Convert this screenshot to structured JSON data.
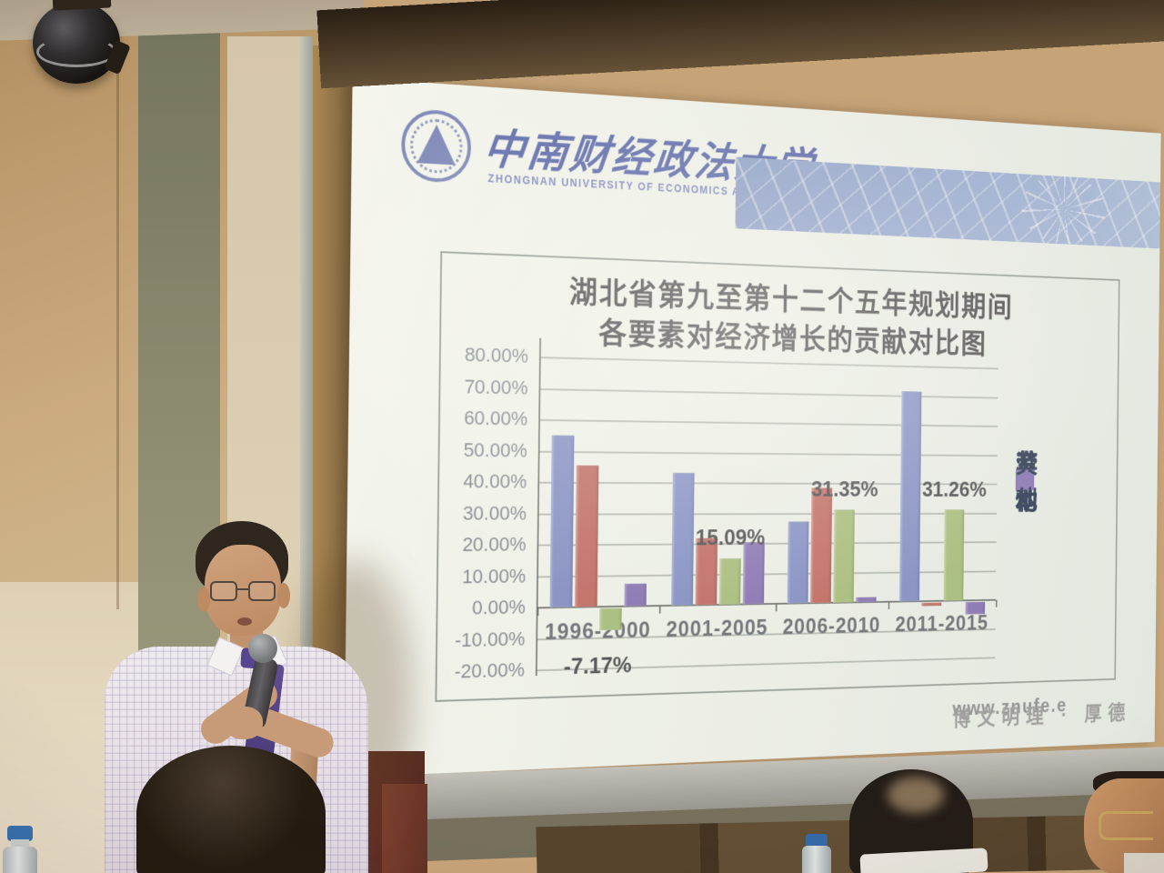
{
  "slide": {
    "logo": {
      "cn": "中南财经政法大学",
      "en": "ZHONGNAN UNIVERSITY OF ECONOMICS AND LAW"
    },
    "title_line1": "湖北省第九至第十二个五年规划期间",
    "title_line2": "各要素对经济增长的贡献对比图",
    "watermark_url": "www.znufe.e",
    "watermark_motto": "博文明理 · 厚德"
  },
  "chart_data": {
    "type": "bar",
    "title": "湖北省第九至第十二个五年规划期间各要素对经济增长的贡献对比图",
    "categories": [
      "1996-2000",
      "2001-2005",
      "2006-2010",
      "2011-2015"
    ],
    "series": [
      {
        "name": "资本",
        "color": "#8693c8",
        "values": [
          55.3,
          43.4,
          27.4,
          71.5
        ]
      },
      {
        "name": "劳动",
        "color": "#c1706a",
        "values": [
          45.6,
          22.0,
          38.6,
          -1.2
        ]
      },
      {
        "name": "专利",
        "color": "#a9bf82",
        "values": [
          -7.17,
          15.09,
          31.35,
          31.26
        ]
      },
      {
        "name": "其他",
        "color": "#8a7ab8",
        "values": [
          7.4,
          20.6,
          1.8,
          -4.3
        ]
      }
    ],
    "y_ticks": [
      "80.00%",
      "70.00%",
      "60.00%",
      "50.00%",
      "40.00%",
      "30.00%",
      "20.00%",
      "10.00%",
      "0.00%",
      "-10.00%",
      "-20.00%"
    ],
    "ylim": [
      -20,
      80
    ],
    "y_step": 10,
    "unit": "%",
    "xlabel": "",
    "ylabel": "",
    "grid": true,
    "legend_position": "right",
    "annotations": [
      {
        "text": "-7.17%",
        "category_index": 0,
        "series_index": 2,
        "position": "below-axis"
      },
      {
        "text": "15.09%",
        "category_index": 1,
        "series_index": 2,
        "position": "above"
      },
      {
        "text": "31.35%",
        "category_index": 2,
        "series_index": 2,
        "position": "above"
      },
      {
        "text": "31.26%",
        "category_index": 3,
        "series_index": 2,
        "position": "above"
      }
    ]
  }
}
